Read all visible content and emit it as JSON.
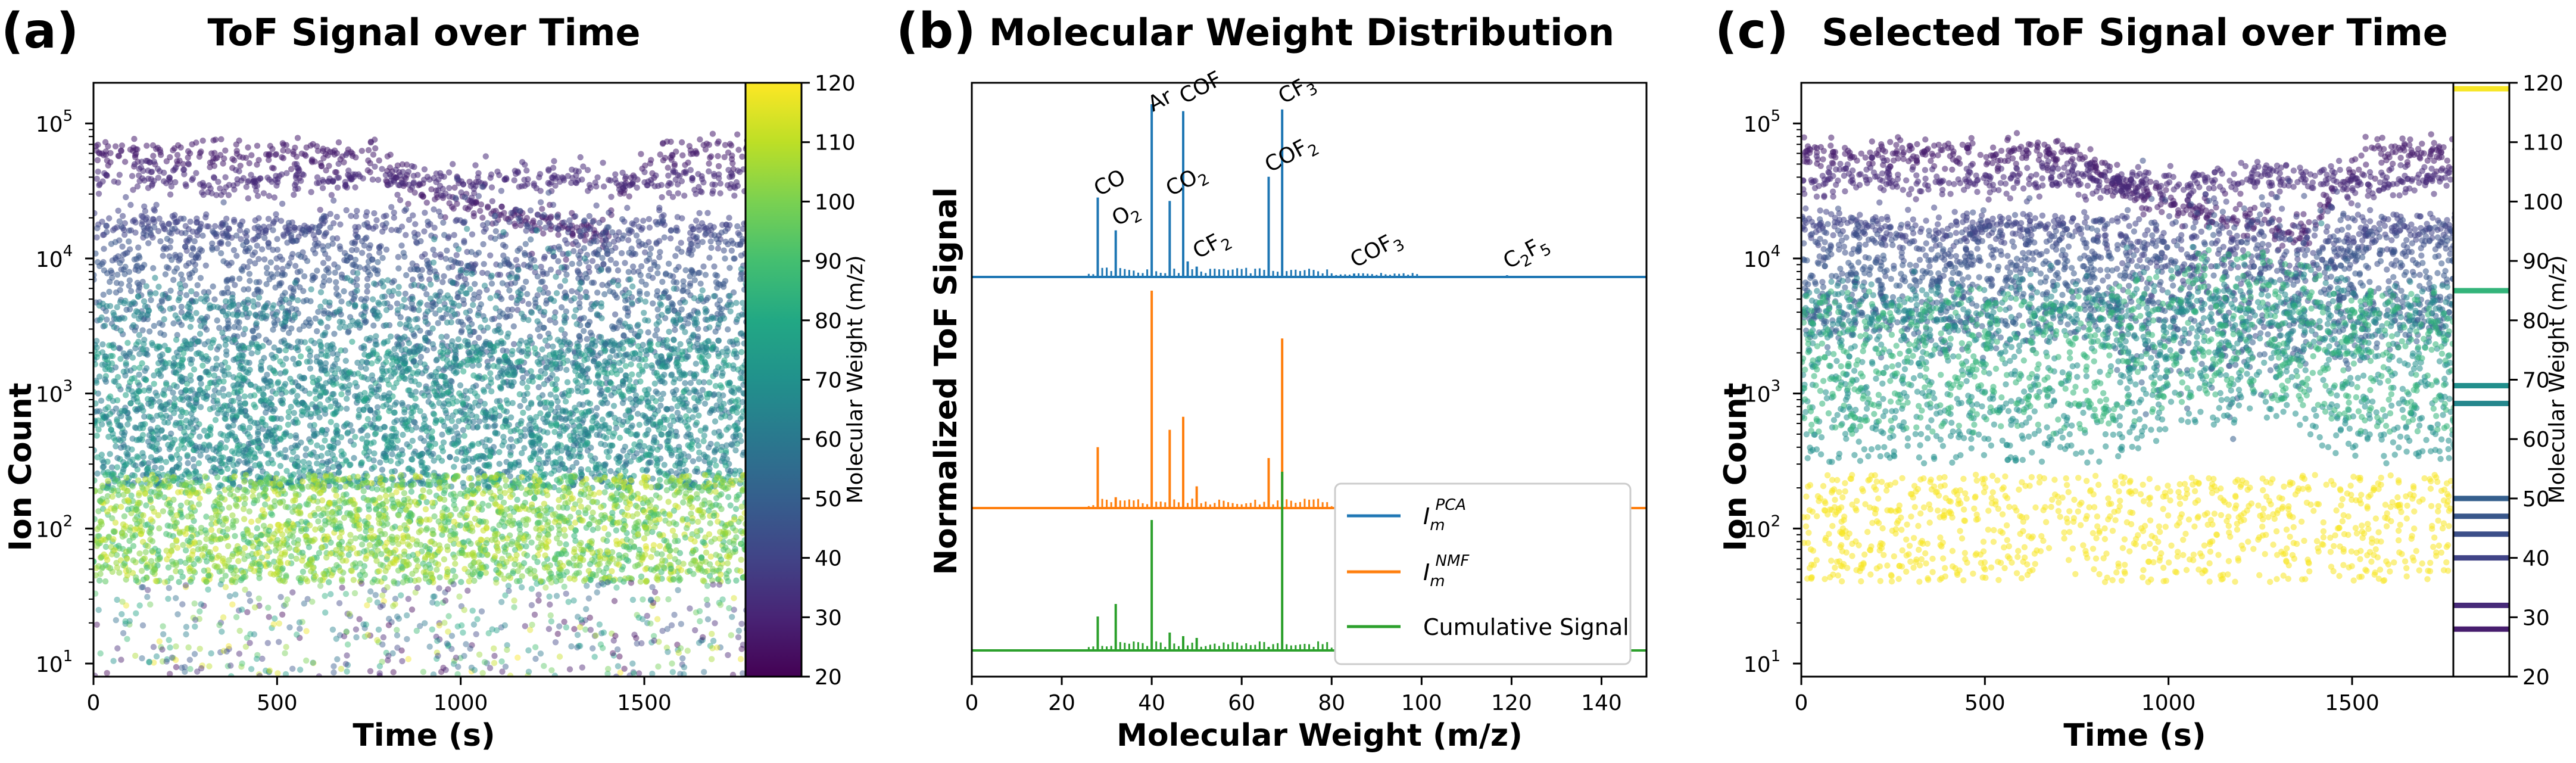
{
  "figure": {
    "panels": [
      {
        "letter": "(a)",
        "title": "ToF Signal over Time",
        "xlabel": "Time (s)",
        "ylabel": "Ion Count",
        "xticks": [
          "0",
          "500",
          "1000",
          "1500"
        ],
        "yticks": [
          "10",
          "10",
          "10",
          "10",
          "10"
        ],
        "ytick_exponents": [
          "1",
          "2",
          "3",
          "4",
          "5"
        ],
        "colorbar": {
          "label": "Molecular Weight (m/z)",
          "ticks": [
            "20",
            "30",
            "40",
            "50",
            "60",
            "70",
            "80",
            "90",
            "100",
            "110",
            "120"
          ]
        }
      },
      {
        "letter": "(b)",
        "title": "Molecular Weight Distribution",
        "xlabel": "Molecular Weight (m/z)",
        "ylabel": "Normalized ToF Signal",
        "xticks": [
          "0",
          "20",
          "40",
          "60",
          "80",
          "100",
          "120",
          "140"
        ],
        "legend": [
          {
            "base": "I",
            "sub": "m",
            "sup": "PCA",
            "text": ""
          },
          {
            "base": "I",
            "sub": "m",
            "sup": "NMF",
            "text": ""
          },
          {
            "base": "",
            "sub": "",
            "sup": "",
            "text": "Cumulative Signal"
          }
        ],
        "peak_labels": [
          {
            "base": "CO",
            "sub": "",
            "tail": ""
          },
          {
            "base": "O",
            "sub": "2",
            "tail": ""
          },
          {
            "base": "Ar",
            "sub": "",
            "tail": ""
          },
          {
            "base": "CO",
            "sub": "2",
            "tail": ""
          },
          {
            "base": "COF",
            "sub": "",
            "tail": ""
          },
          {
            "base": "CF",
            "sub": "2",
            "tail": ""
          },
          {
            "base": "COF",
            "sub": "2",
            "tail": ""
          },
          {
            "base": "CF",
            "sub": "3",
            "tail": ""
          },
          {
            "base": "COF",
            "sub": "3",
            "tail": ""
          },
          {
            "base": "C",
            "sub": "2",
            "tail": "F",
            "sub2": "5"
          }
        ]
      },
      {
        "letter": "(c)",
        "title": "Selected ToF Signal over Time",
        "xlabel": "Time (s)",
        "ylabel": "Ion Count",
        "xticks": [
          "0",
          "500",
          "1000",
          "1500"
        ],
        "yticks": [
          "10",
          "10",
          "10",
          "10",
          "10"
        ],
        "ytick_exponents": [
          "1",
          "2",
          "3",
          "4",
          "5"
        ],
        "colorbar": {
          "label": "Molecular Weight (m/z)",
          "ticks": [
            "20",
            "30",
            "40",
            "50",
            "60",
            "70",
            "80",
            "90",
            "100",
            "110",
            "120"
          ]
        }
      }
    ]
  },
  "chart_data": [
    {
      "type": "scatter",
      "title": "ToF Signal over Time",
      "xlabel": "Time (s)",
      "ylabel": "Ion Count",
      "xlim": [
        0,
        1800
      ],
      "ylim": [
        8,
        200000
      ],
      "yscale": "log",
      "colormap": "viridis",
      "color_range": [
        20,
        120
      ],
      "colorbar_label": "Molecular Weight (m/z)",
      "series": [
        {
          "mz": 28,
          "level": 60000,
          "level_mid": 15000,
          "decline_start": 780,
          "trough_time": 1400,
          "recover_end": 1560
        },
        {
          "mz": 32,
          "level": 38000
        },
        {
          "mz": 40,
          "level": 17000
        },
        {
          "mz": 44,
          "level": 12000
        },
        {
          "mz": 47,
          "level": 7000
        },
        {
          "mz": 50,
          "level": 3500
        },
        {
          "mz": 66,
          "level": 4000
        }
      ],
      "dense_band": {
        "mz_range": [
          55,
          80
        ],
        "count_range": [
          200,
          2500
        ]
      },
      "background_band": {
        "mz_range": [
          85,
          115
        ],
        "count_range": [
          40,
          250
        ]
      },
      "sparse_floor": {
        "count_range": [
          8,
          40
        ]
      }
    },
    {
      "type": "line",
      "title": "Molecular Weight Distribution",
      "xlabel": "Molecular Weight (m/z)",
      "ylabel": "Normalized ToF Signal",
      "xlim": [
        0,
        150
      ],
      "series": [
        {
          "name": "I_m^PCA",
          "color": "#1f77b4",
          "peaks": [
            [
              28,
              0.46
            ],
            [
              32,
              0.27
            ],
            [
              40,
              1.0
            ],
            [
              44,
              0.44
            ],
            [
              47,
              0.96
            ],
            [
              48,
              0.09
            ],
            [
              50,
              0.06
            ],
            [
              66,
              0.58
            ],
            [
              69,
              0.97
            ],
            [
              85,
              0.02
            ],
            [
              119,
              0.01
            ]
          ]
        },
        {
          "name": "I_m^NMF",
          "color": "#ff7f0e",
          "peaks": [
            [
              28,
              0.28
            ],
            [
              32,
              0.05
            ],
            [
              40,
              1.0
            ],
            [
              44,
              0.36
            ],
            [
              47,
              0.42
            ],
            [
              50,
              0.1
            ],
            [
              66,
              0.23
            ],
            [
              69,
              0.78
            ]
          ]
        },
        {
          "name": "Cumulative Signal",
          "color": "#2ca02c",
          "peaks": [
            [
              28,
              0.19
            ],
            [
              32,
              0.26
            ],
            [
              40,
              0.73
            ],
            [
              44,
              0.1
            ],
            [
              47,
              0.08
            ],
            [
              50,
              0.07
            ],
            [
              66,
              0.02
            ],
            [
              69,
              1.0
            ]
          ]
        }
      ]
    },
    {
      "type": "scatter",
      "title": "Selected ToF Signal over Time",
      "xlabel": "Time (s)",
      "ylabel": "Ion Count",
      "xlim": [
        0,
        1800
      ],
      "ylim": [
        8,
        200000
      ],
      "yscale": "log",
      "colormap": "viridis",
      "color_range": [
        20,
        120
      ],
      "colorbar_label": "Molecular Weight (m/z)",
      "selected_mz": [
        28,
        32,
        40,
        44,
        47,
        50,
        66,
        69,
        85,
        119
      ]
    }
  ]
}
